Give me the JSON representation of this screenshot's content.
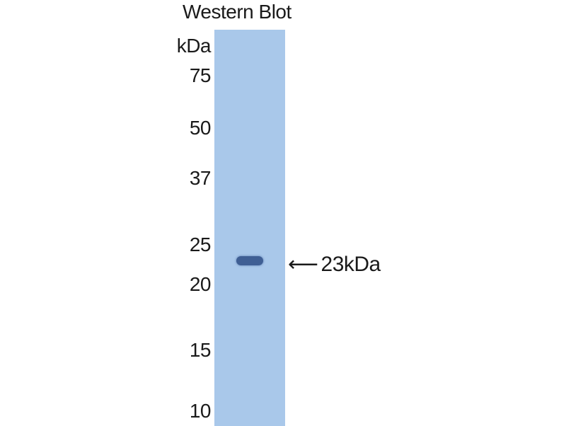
{
  "title": "Western Blot",
  "unit_label": "kDa",
  "markers": [
    "75",
    "50",
    "37",
    "25",
    "20",
    "15",
    "10"
  ],
  "band_annotation": {
    "arrow_icon": "left-arrow",
    "label": "23kDa"
  },
  "colors": {
    "lane": "#a9c8ea",
    "band": "#3f5f94"
  }
}
